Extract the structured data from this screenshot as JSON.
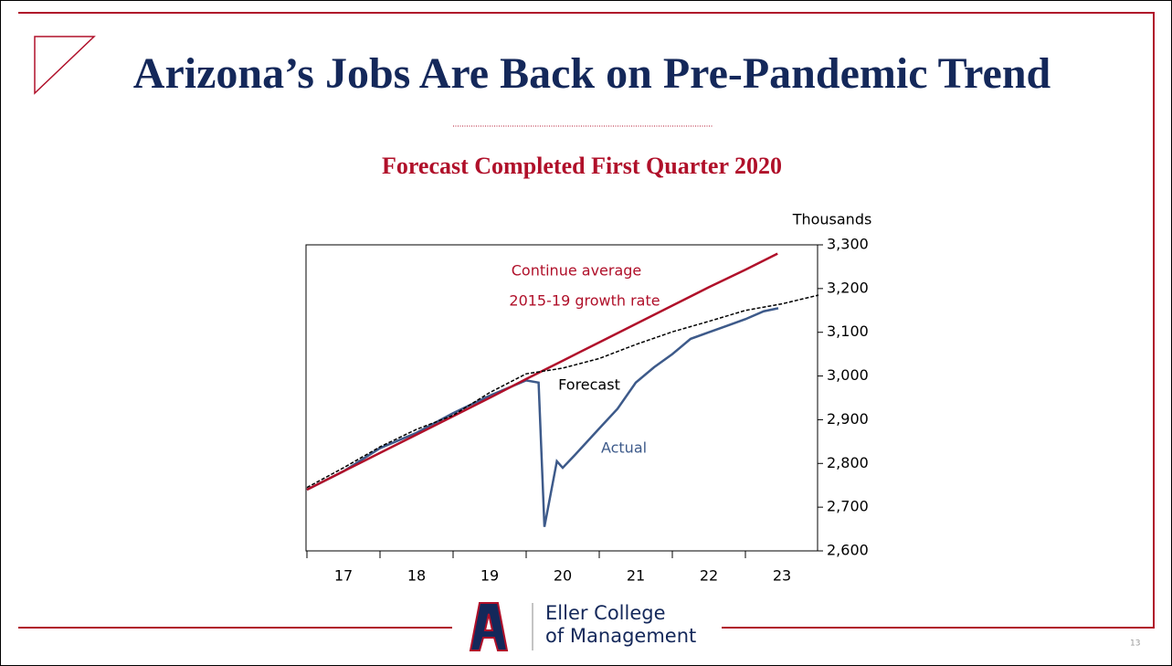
{
  "chart_data": {
    "type": "line",
    "title": "Arizona’s Jobs Are Back on Pre-Pandemic Trend",
    "subtitle": "Forecast Completed First Quarter 2020",
    "y_label": "Thousands",
    "annotations": [
      "Continue average",
      "2015-19 growth rate",
      "Forecast",
      "Actual"
    ],
    "xlim": [
      2017,
      2024
    ],
    "xticks": [
      {
        "value": 2017.5,
        "label": "17"
      },
      {
        "value": 2018.5,
        "label": "18"
      },
      {
        "value": 2019.5,
        "label": "19"
      },
      {
        "value": 2020.5,
        "label": "20"
      },
      {
        "value": 2021.5,
        "label": "21"
      },
      {
        "value": 2022.5,
        "label": "22"
      },
      {
        "value": 2023.5,
        "label": "23"
      }
    ],
    "ylim": [
      2600,
      3300
    ],
    "yticks": [
      {
        "value": 2600,
        "label": "2,600"
      },
      {
        "value": 2700,
        "label": "2,700"
      },
      {
        "value": 2800,
        "label": "2,800"
      },
      {
        "value": 2900,
        "label": "2,900"
      },
      {
        "value": 3000,
        "label": "3,000"
      },
      {
        "value": 3100,
        "label": "3,100"
      },
      {
        "value": 3200,
        "label": "3,200"
      },
      {
        "value": 3300,
        "label": "3,300"
      }
    ],
    "series": [
      {
        "name": "Actual",
        "color": "#3d5a8a",
        "dashed": false,
        "x": [
          2017,
          2017.5,
          2018,
          2018.5,
          2019,
          2019.5,
          2020,
          2020.17,
          2020.25,
          2020.42,
          2020.5,
          2020.67,
          2021,
          2021.25,
          2021.5,
          2021.75,
          2022,
          2022.25,
          2022.5,
          2022.75,
          2023,
          2023.25,
          2023.45
        ],
        "values": [
          2740,
          2782,
          2835,
          2870,
          2915,
          2955,
          2990,
          2985,
          2655,
          2805,
          2790,
          2820,
          2880,
          2925,
          2985,
          3020,
          3050,
          3085,
          3100,
          3115,
          3130,
          3148,
          3155
        ]
      },
      {
        "name": "Continue average 2015-19 growth rate",
        "color": "#b0102a",
        "dashed": false,
        "x": [
          2017,
          2017.5,
          2018,
          2018.5,
          2019,
          2019.5,
          2020,
          2020.5,
          2021,
          2021.5,
          2022,
          2022.5,
          2023,
          2023.44
        ],
        "values": [
          2740,
          2782,
          2824,
          2866,
          2908,
          2950,
          2993,
          3035,
          3077,
          3119,
          3161,
          3203,
          3243,
          3280
        ]
      },
      {
        "name": "Forecast",
        "color": "#000000",
        "dashed": true,
        "x": [
          2017,
          2017.5,
          2018,
          2018.5,
          2019,
          2019.5,
          2020,
          2020.5,
          2021,
          2021.5,
          2022,
          2022.5,
          2023,
          2023.5,
          2024
        ],
        "values": [
          2745,
          2790,
          2838,
          2878,
          2910,
          2962,
          3005,
          3018,
          3040,
          3072,
          3101,
          3125,
          3150,
          3165,
          3185
        ]
      }
    ]
  },
  "footer": {
    "logo_line1": "Eller College",
    "logo_line2": "of Management",
    "page_number": "13"
  }
}
